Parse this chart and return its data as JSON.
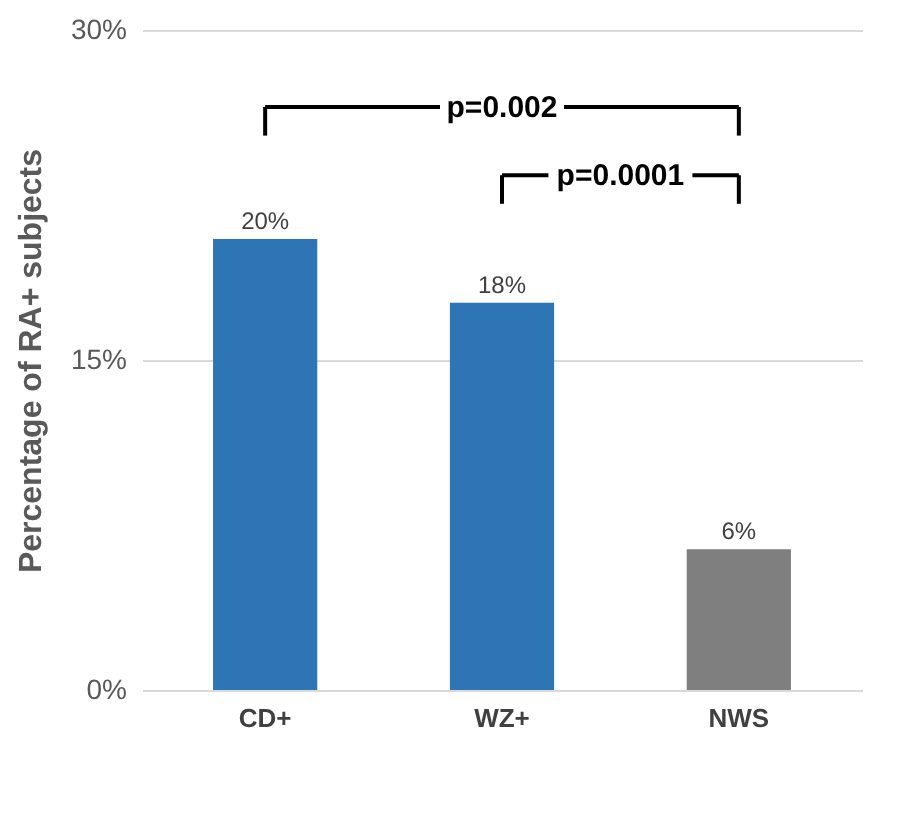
{
  "chart_data": {
    "type": "bar",
    "ylabel": "Percentage of RA+ subjects",
    "categories": [
      "CD+",
      "WZ+",
      "NWS"
    ],
    "values": [
      20.5,
      17.6,
      6.4
    ],
    "value_labels": [
      "20%",
      "18%",
      "6%"
    ],
    "colors": [
      "#2e75b6",
      "#2e75b6",
      "#7f7f7f"
    ],
    "ylim": [
      0,
      30
    ],
    "yticks": [
      {
        "value": 0,
        "label": "0%"
      },
      {
        "value": 15,
        "label": "15%"
      },
      {
        "value": 30,
        "label": "30%"
      }
    ],
    "grid": "y",
    "annotations": [
      "p=0.002",
      "p=0.0001"
    ]
  }
}
